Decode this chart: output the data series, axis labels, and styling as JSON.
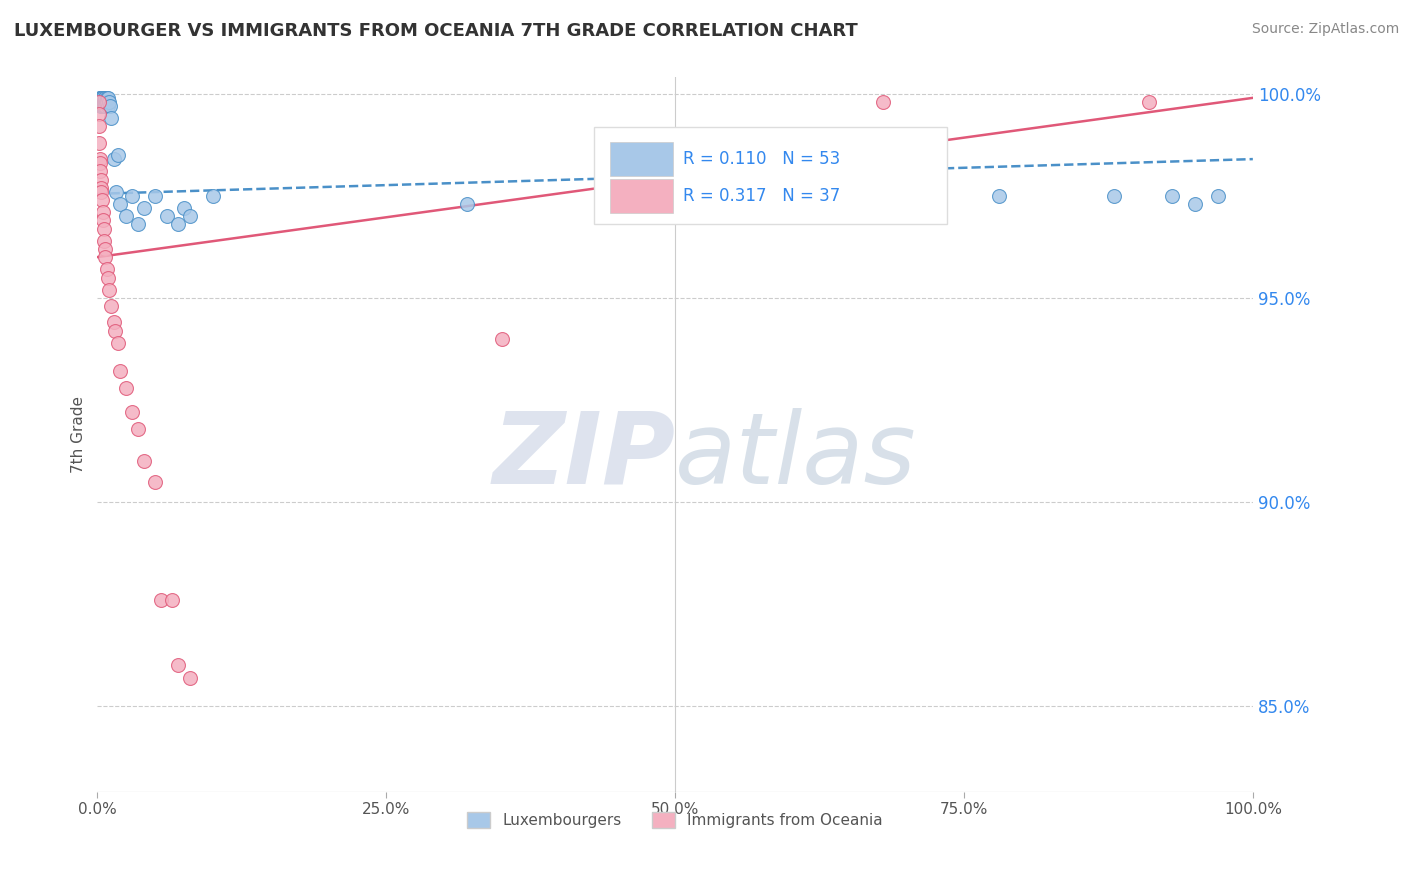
{
  "title": "LUXEMBOURGER VS IMMIGRANTS FROM OCEANIA 7TH GRADE CORRELATION CHART",
  "source": "Source: ZipAtlas.com",
  "ylabel": "7th Grade",
  "xlim": [
    0.0,
    100.0
  ],
  "ylim": [
    0.829,
    1.004
  ],
  "yticks": [
    0.85,
    0.9,
    0.95,
    1.0
  ],
  "ytick_labels": [
    "85.0%",
    "90.0%",
    "95.0%",
    "100.0%"
  ],
  "xticks": [
    0,
    25,
    50,
    75,
    100
  ],
  "xtick_labels": [
    "0.0%",
    "25.0%",
    "50.0%",
    "75.0%",
    "100.0%"
  ],
  "legend_labels": [
    "Luxembourgers",
    "Immigrants from Oceania"
  ],
  "R_blue": 0.11,
  "N_blue": 53,
  "R_pink": 0.317,
  "N_pink": 37,
  "blue_color": "#a8c8e8",
  "pink_color": "#f4b0c0",
  "blue_line_color": "#4a90c8",
  "pink_line_color": "#e05878",
  "watermark_zip": "ZIP",
  "watermark_atlas": "atlas",
  "blue_x": [
    0.15,
    0.2,
    0.22,
    0.25,
    0.28,
    0.3,
    0.32,
    0.33,
    0.35,
    0.37,
    0.4,
    0.42,
    0.45,
    0.48,
    0.5,
    0.52,
    0.55,
    0.58,
    0.6,
    0.62,
    0.65,
    0.68,
    0.7,
    0.75,
    0.8,
    0.85,
    0.9,
    0.95,
    1.0,
    1.1,
    1.2,
    1.4,
    1.6,
    1.8,
    2.0,
    2.5,
    3.0,
    3.5,
    4.0,
    5.0,
    6.0,
    7.0,
    7.5,
    8.0,
    10.0,
    32.0,
    52.0,
    62.0,
    78.0,
    88.0,
    93.0,
    95.0,
    97.0
  ],
  "blue_y": [
    0.998,
    0.999,
    0.999,
    0.998,
    0.997,
    0.999,
    0.998,
    0.997,
    0.999,
    0.998,
    0.997,
    0.999,
    0.998,
    0.997,
    0.999,
    0.997,
    0.998,
    0.997,
    0.998,
    0.999,
    0.998,
    0.999,
    0.997,
    0.998,
    0.999,
    0.998,
    0.997,
    0.999,
    0.998,
    0.997,
    0.994,
    0.984,
    0.976,
    0.985,
    0.973,
    0.97,
    0.975,
    0.968,
    0.972,
    0.975,
    0.97,
    0.968,
    0.972,
    0.97,
    0.975,
    0.973,
    0.975,
    0.973,
    0.975,
    0.975,
    0.975,
    0.973,
    0.975
  ],
  "pink_x": [
    0.1,
    0.12,
    0.15,
    0.18,
    0.2,
    0.22,
    0.25,
    0.28,
    0.3,
    0.35,
    0.4,
    0.45,
    0.5,
    0.55,
    0.6,
    0.65,
    0.7,
    0.8,
    0.9,
    1.0,
    1.2,
    1.4,
    1.5,
    1.8,
    2.0,
    2.5,
    3.0,
    3.5,
    4.0,
    5.0,
    5.5,
    6.5,
    7.0,
    8.0,
    35.0,
    68.0,
    91.0
  ],
  "pink_y": [
    0.998,
    0.995,
    0.992,
    0.988,
    0.984,
    0.983,
    0.981,
    0.979,
    0.977,
    0.976,
    0.974,
    0.971,
    0.969,
    0.967,
    0.964,
    0.962,
    0.96,
    0.957,
    0.955,
    0.952,
    0.948,
    0.944,
    0.942,
    0.939,
    0.932,
    0.928,
    0.922,
    0.918,
    0.91,
    0.905,
    0.876,
    0.876,
    0.86,
    0.857,
    0.94,
    0.998,
    0.998
  ]
}
